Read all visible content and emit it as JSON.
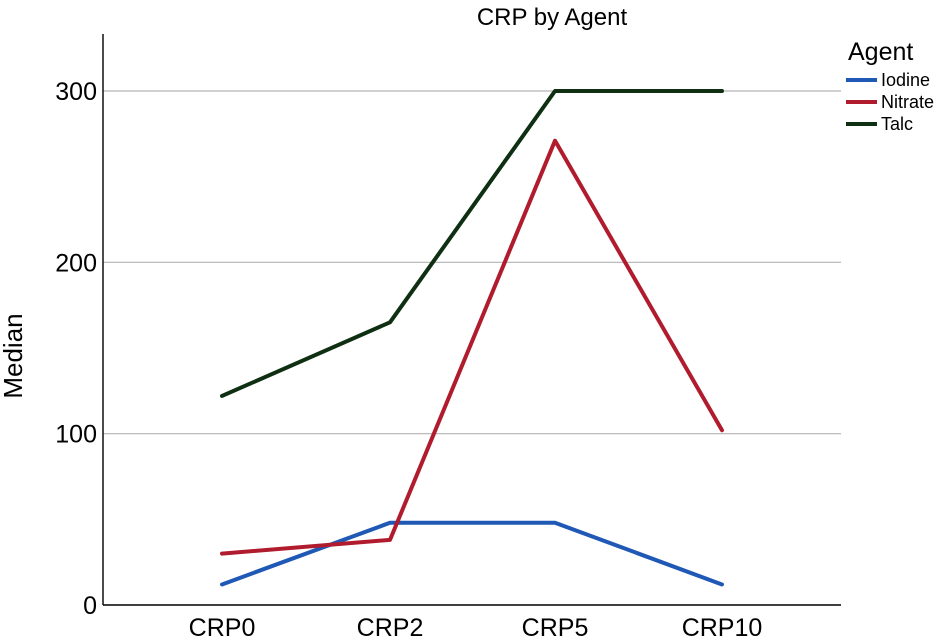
{
  "chart_data": {
    "type": "line",
    "title": "CRP by Agent",
    "xlabel": "",
    "ylabel": "Median",
    "categories": [
      "CRP0",
      "CRP2",
      "CRP5",
      "CRP10"
    ],
    "ylim": [
      0,
      330
    ],
    "yticks": [
      0,
      100,
      200,
      300
    ],
    "grid": true,
    "legend": {
      "title": "Agent",
      "placement": "top-right"
    },
    "series": [
      {
        "name": "Iodine",
        "color": "#1f58b5",
        "values": [
          12,
          48,
          48,
          12
        ]
      },
      {
        "name": "Nitrate",
        "color": "#b01c2e",
        "values": [
          30,
          38,
          271,
          102
        ]
      },
      {
        "name": "Talc",
        "color": "#0f2f12",
        "values": [
          122,
          165,
          300,
          300
        ]
      }
    ]
  }
}
